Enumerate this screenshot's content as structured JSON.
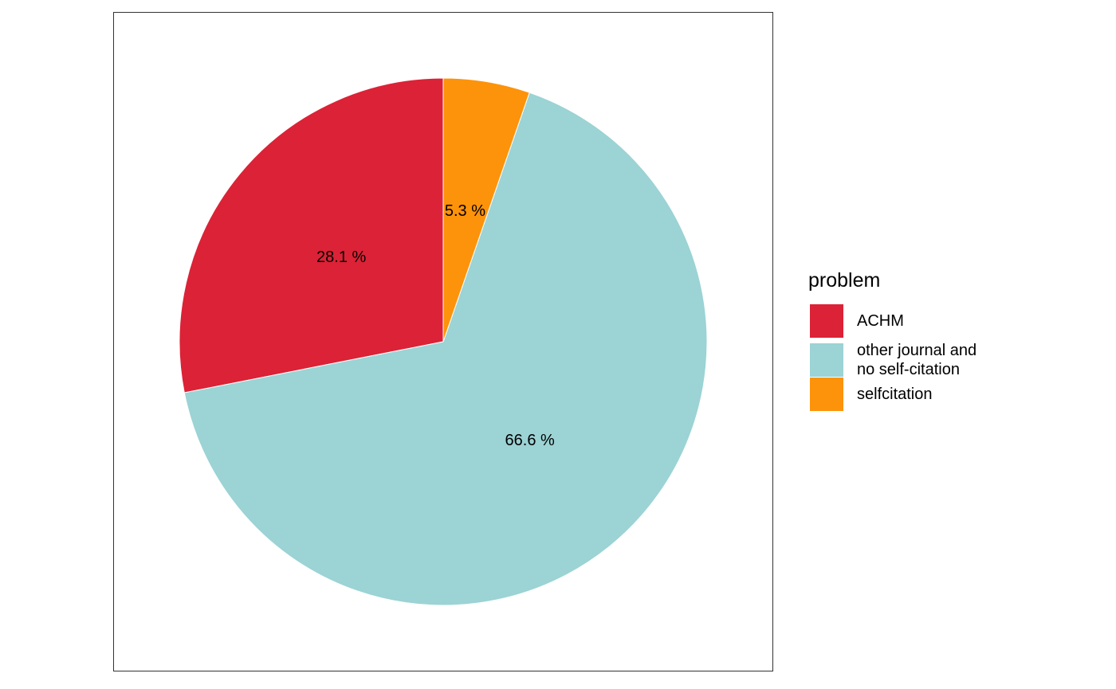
{
  "chart_data": {
    "type": "pie",
    "legend_title": "problem",
    "categories": [
      "ACHM",
      "other journal and\nno self-citation",
      "selfcitation"
    ],
    "values": [
      28.1,
      66.6,
      5.3
    ],
    "value_labels": [
      "28.1 %",
      "66.6 %",
      "5.3 %"
    ],
    "colors": [
      "#dc2236",
      "#9cd3d5",
      "#fd930a"
    ],
    "legend": "right"
  }
}
